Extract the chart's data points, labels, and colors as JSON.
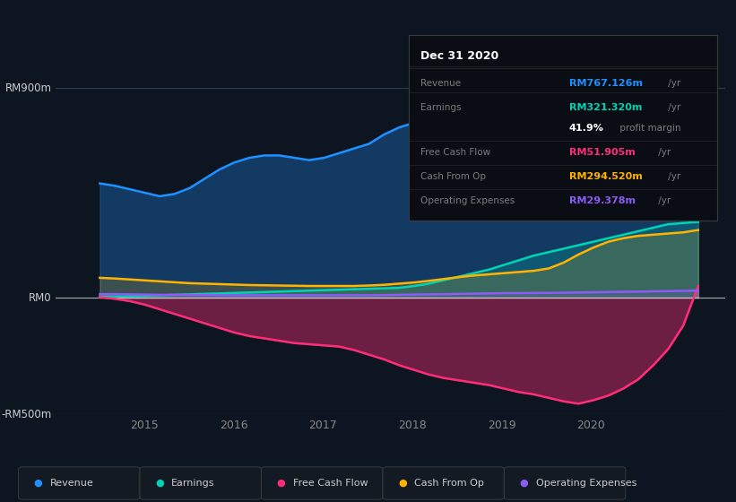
{
  "bg_color": "#0d1520",
  "plot_bg_color": "#0d1520",
  "ylim": [
    -500,
    900
  ],
  "xlim_start": 2014.0,
  "xlim_end": 2021.5,
  "xticks": [
    2015,
    2016,
    2017,
    2018,
    2019,
    2020
  ],
  "colors": {
    "revenue": "#1e90ff",
    "earnings": "#00d4b4",
    "free_cash_flow": "#ff2d78",
    "cash_from_op": "#ffb300",
    "operating_expenses": "#8b5cf6"
  },
  "revenue": [
    490,
    480,
    465,
    450,
    435,
    445,
    470,
    510,
    550,
    580,
    600,
    610,
    610,
    600,
    590,
    600,
    620,
    640,
    660,
    700,
    730,
    750,
    760,
    750,
    730,
    700,
    660,
    610,
    570,
    540,
    530,
    540,
    560,
    580,
    600,
    620,
    640,
    660,
    690,
    750,
    790
  ],
  "earnings": [
    5,
    5,
    6,
    8,
    10,
    12,
    14,
    16,
    18,
    20,
    22,
    24,
    26,
    28,
    30,
    32,
    34,
    36,
    38,
    40,
    42,
    50,
    60,
    75,
    90,
    105,
    120,
    140,
    160,
    180,
    195,
    210,
    225,
    240,
    255,
    270,
    285,
    300,
    315,
    320,
    325
  ],
  "free_cash_flow": [
    2,
    -5,
    -15,
    -30,
    -50,
    -70,
    -90,
    -110,
    -130,
    -150,
    -165,
    -175,
    -185,
    -195,
    -200,
    -205,
    -210,
    -225,
    -245,
    -265,
    -290,
    -310,
    -330,
    -345,
    -355,
    -365,
    -375,
    -390,
    -405,
    -415,
    -430,
    -445,
    -455,
    -440,
    -420,
    -390,
    -350,
    -290,
    -220,
    -120,
    50
  ],
  "cash_from_op": [
    85,
    82,
    78,
    74,
    70,
    66,
    62,
    60,
    58,
    56,
    54,
    53,
    52,
    51,
    50,
    50,
    50,
    50,
    52,
    55,
    60,
    65,
    72,
    80,
    88,
    95,
    100,
    105,
    110,
    115,
    125,
    150,
    185,
    215,
    240,
    255,
    265,
    270,
    275,
    280,
    290
  ],
  "operating_expenses": [
    15,
    15,
    14,
    13,
    12,
    12,
    11,
    11,
    10,
    10,
    10,
    10,
    10,
    10,
    10,
    10,
    10,
    10,
    10,
    11,
    12,
    13,
    14,
    15,
    16,
    17,
    18,
    19,
    19,
    20,
    20,
    21,
    22,
    23,
    24,
    25,
    26,
    27,
    28,
    29,
    30
  ],
  "n_points": 41,
  "start_year": 2014.5,
  "end_year": 2021.2,
  "tooltip": {
    "title": "Dec 31 2020",
    "rows": [
      {
        "label": "Revenue",
        "value": "RM767.126m",
        "unit": " /yr",
        "color": "#1e90ff"
      },
      {
        "label": "Earnings",
        "value": "RM321.320m",
        "unit": " /yr",
        "color": "#00d4b4"
      },
      {
        "label": "",
        "value": "41.9%",
        "unit": " profit margin",
        "color": "#ffffff"
      },
      {
        "label": "Free Cash Flow",
        "value": "RM51.905m",
        "unit": " /yr",
        "color": "#ff2d78"
      },
      {
        "label": "Cash From Op",
        "value": "RM294.520m",
        "unit": " /yr",
        "color": "#ffb300"
      },
      {
        "label": "Operating Expenses",
        "value": "RM29.378m",
        "unit": " /yr",
        "color": "#8b5cf6"
      }
    ]
  },
  "legend": [
    {
      "label": "Revenue",
      "color": "#1e90ff"
    },
    {
      "label": "Earnings",
      "color": "#00d4b4"
    },
    {
      "label": "Free Cash Flow",
      "color": "#ff2d78"
    },
    {
      "label": "Cash From Op",
      "color": "#ffb300"
    },
    {
      "label": "Operating Expenses",
      "color": "#8b5cf6"
    }
  ]
}
